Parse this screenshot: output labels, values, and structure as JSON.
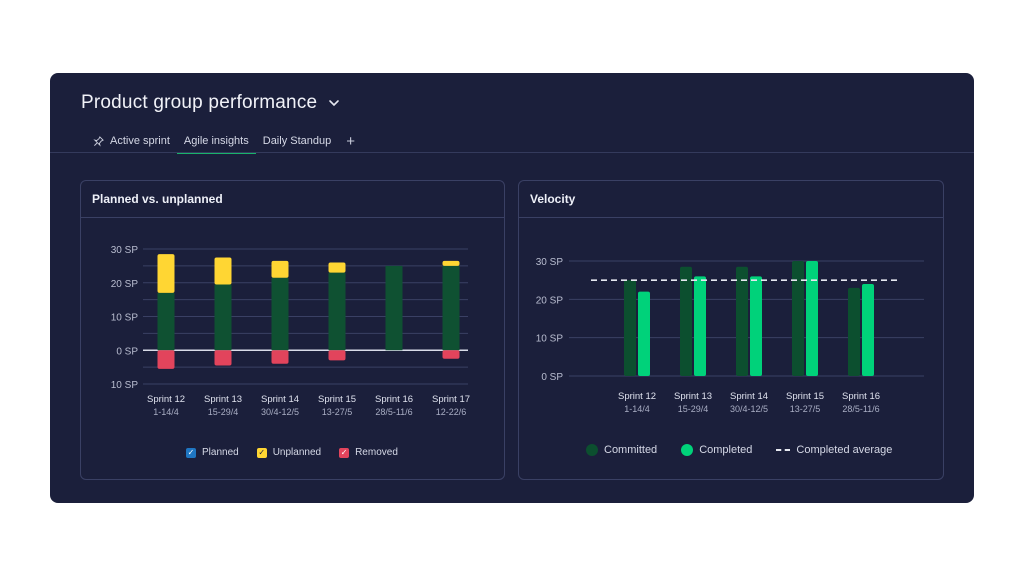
{
  "header": {
    "title": "Product group performance"
  },
  "tabs": [
    {
      "label": "Active sprint",
      "icon": "pin-icon"
    },
    {
      "label": "Agile insights",
      "active": true
    },
    {
      "label": "Daily Standup"
    }
  ],
  "tab_add_label": "+",
  "colors": {
    "planned": "#0f5132",
    "unplanned": "#ffd633",
    "removed": "#e2445c",
    "committed": "#0c4f2f",
    "completed": "#00d27a",
    "legend_planned": "#1f76c2",
    "tab_underline": "#19b36b"
  },
  "planned_card": {
    "title": "Planned vs. unplanned",
    "legend": {
      "planned": "Planned",
      "unplanned": "Unplanned",
      "removed": "Removed"
    }
  },
  "velocity_card": {
    "title": "Velocity",
    "legend": {
      "committed": "Committed",
      "completed": "Completed",
      "average": "Completed average"
    }
  },
  "chart_data": [
    {
      "type": "bar",
      "title": "Planned vs. unplanned",
      "categories": [
        "Sprint 12",
        "Sprint 13",
        "Sprint 14",
        "Sprint 15",
        "Sprint 16",
        "Sprint 17"
      ],
      "category_dates": [
        "1-14/4",
        "15-29/4",
        "30/4-12/5",
        "13-27/5",
        "28/5-11/6",
        "12-22/6"
      ],
      "y_ticks": [
        "30 SP",
        "20 SP",
        "10 SP",
        "0 SP",
        "10 SP"
      ],
      "y_tick_values": [
        30,
        20,
        10,
        0,
        -10
      ],
      "ylim": [
        -10,
        30
      ],
      "stacked": true,
      "series": [
        {
          "name": "Planned",
          "values": [
            17,
            19.5,
            21.5,
            23,
            25,
            25
          ]
        },
        {
          "name": "Unplanned",
          "values": [
            11.5,
            8,
            5,
            3,
            0,
            1.5
          ]
        },
        {
          "name": "Removed",
          "values": [
            -5.5,
            -4.5,
            -4,
            -3,
            0,
            -2.5
          ]
        }
      ],
      "grid": true,
      "legend_position": "bottom"
    },
    {
      "type": "bar",
      "title": "Velocity",
      "categories": [
        "Sprint 12",
        "Sprint 13",
        "Sprint 14",
        "Sprint 15",
        "Sprint 16"
      ],
      "category_dates": [
        "1-14/4",
        "15-29/4",
        "30/4-12/5",
        "13-27/5",
        "28/5-11/6"
      ],
      "y_ticks": [
        "30 SP",
        "20 SP",
        "10 SP",
        "0 SP"
      ],
      "y_tick_values": [
        30,
        20,
        10,
        0
      ],
      "ylim": [
        0,
        30
      ],
      "series": [
        {
          "name": "Committed",
          "values": [
            25,
            28.5,
            28.5,
            30,
            23
          ]
        },
        {
          "name": "Completed",
          "values": [
            22,
            26,
            26,
            30,
            24
          ]
        }
      ],
      "average": {
        "name": "Completed average",
        "value": 25
      },
      "grid": true,
      "legend_position": "bottom"
    }
  ]
}
